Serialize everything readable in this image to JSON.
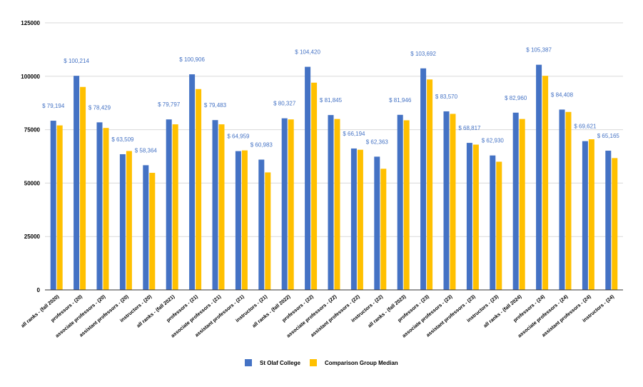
{
  "chart_data": {
    "type": "bar",
    "title": "",
    "xlabel": "",
    "ylabel": "",
    "ylim": [
      0,
      125000
    ],
    "yticks": [
      0,
      25000,
      50000,
      75000,
      100000,
      125000
    ],
    "ytick_labels": [
      "0",
      "25000",
      "50000",
      "75000",
      "100000",
      "125000"
    ],
    "grid": true,
    "legend_position": "bottom",
    "colors": {
      "st_olaf": "#4472c4",
      "comparison": "#ffc000"
    },
    "categories": [
      "all ranks - (fall 2020)",
      "professors - (20)",
      "associate professors - (20)",
      "assistant professors - (20)",
      "instructors - (20)",
      "all ranks - (fall 2021)",
      "professors - (21)",
      "associate professors - (21)",
      "assistant professors - (21)",
      "instructors - (21)",
      "all ranks - (fall 2022)",
      "professors - (22)",
      "associate professors - (22)",
      "assistant professors - (22)",
      "instructors - (22)",
      "all ranks - (fall 2023)",
      "professors - (23)",
      "associate professors - (23)",
      "assistant professors - (23)",
      "instructors - (23)",
      "all ranks - (fall 2024)",
      "professors - (24)",
      "associate professors - (24)",
      "assistant professors - (24)",
      "instructors - (24)"
    ],
    "series": [
      {
        "name": "St Olaf College",
        "values": [
          79194,
          100214,
          78429,
          63509,
          58364,
          79797,
          100906,
          79483,
          64959,
          60983,
          80327,
          104420,
          81845,
          66194,
          62363,
          81946,
          103692,
          83570,
          68817,
          62930,
          82960,
          105387,
          84408,
          69621,
          65165
        ],
        "labels": [
          "$ 79,194",
          "$ 100,214",
          "$ 78,429",
          "$ 63,509",
          "$ 58,364",
          "$ 79,797",
          "$ 100,906",
          "$ 79,483",
          "$ 64,959",
          "$ 60,983",
          "$ 80,327",
          "$ 104,420",
          "$ 81,845",
          "$ 66,194",
          "$ 62,363",
          "$ 81,946",
          "$ 103,692",
          "$ 83,570",
          "$ 68,817",
          "$ 62,930",
          "$ 82,960",
          "$ 105,387",
          "$ 84,408",
          "$ 69,621",
          "$ 65,165"
        ]
      },
      {
        "name": "Comparison Group Median",
        "values": [
          77000,
          95000,
          75800,
          65000,
          54800,
          77500,
          94000,
          77500,
          65300,
          55000,
          79800,
          97000,
          80000,
          65600,
          56700,
          79400,
          98500,
          82400,
          68000,
          60000,
          80000,
          100200,
          83300,
          70500,
          61700
        ]
      }
    ]
  }
}
